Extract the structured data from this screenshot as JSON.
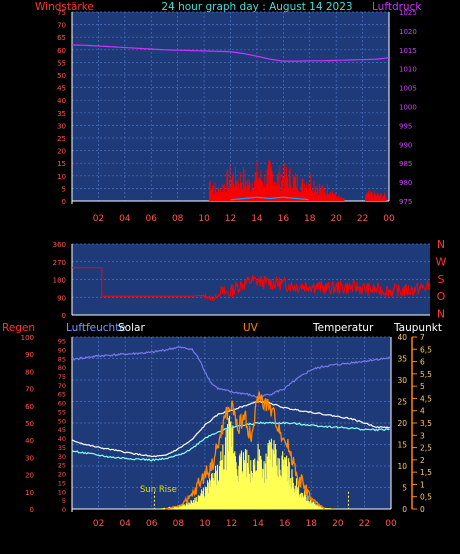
{
  "chart_data": [
    {
      "type": "line",
      "title": "24 hour graph day : August 14 2023",
      "left_axis_label": "Windstärke",
      "right_axis_label": "Luftdruck",
      "x_ticks": [
        "02",
        "04",
        "06",
        "08",
        "10",
        "12",
        "14",
        "16",
        "18",
        "20",
        "22",
        "00"
      ],
      "left_ticks": [
        75,
        70,
        65,
        60,
        55,
        50,
        45,
        40,
        35,
        30,
        25,
        20,
        15,
        10,
        5,
        0
      ],
      "left_ylim": [
        0,
        75
      ],
      "right_ticks": [
        1025,
        1020,
        1015,
        1010,
        1005,
        1000,
        995,
        990,
        985,
        980,
        975
      ],
      "right_ylim": [
        975,
        1025
      ],
      "series": [
        {
          "name": "",
          "role": "pressure",
          "color": "#cc33ff",
          "x": [
            0,
            1,
            2,
            3,
            4,
            5,
            6,
            7,
            8,
            9,
            10,
            11,
            12,
            13,
            14,
            15,
            16,
            17,
            18,
            19,
            20,
            21,
            22,
            23,
            24
          ],
          "values": [
            1016.3,
            1016.2,
            1016.0,
            1015.8,
            1015.6,
            1015.4,
            1015.2,
            1015.0,
            1014.9,
            1014.8,
            1014.7,
            1014.6,
            1014.5,
            1014.0,
            1013.3,
            1012.5,
            1012.0,
            1012.0,
            1012.1,
            1012.1,
            1012.2,
            1012.3,
            1012.4,
            1012.5,
            1012.9
          ]
        },
        {
          "name": "",
          "role": "gust",
          "color": "#ff0000",
          "x": [
            10.5,
            11,
            11.5,
            12,
            12.5,
            13,
            13.5,
            14,
            14.5,
            15,
            15.5,
            16,
            16.5,
            17,
            17.5,
            18,
            18.5,
            19,
            19.5,
            20,
            20.5,
            22.5,
            23.5
          ],
          "values": [
            11,
            5,
            9,
            14,
            12,
            13,
            9,
            15,
            11,
            16,
            12,
            14,
            13,
            11,
            9,
            12,
            9,
            6,
            7,
            3,
            1,
            4,
            3
          ]
        },
        {
          "name": "",
          "role": "wind-average",
          "color": "#ff0000",
          "x": [
            10.5,
            11,
            11.5,
            12,
            12.5,
            13,
            13.5,
            14,
            14.5,
            15,
            15.5,
            16,
            16.5,
            17,
            17.5,
            18,
            18.5,
            19,
            19.5,
            20
          ],
          "values": [
            3,
            1,
            2,
            4,
            3,
            4,
            2,
            5,
            3,
            5,
            4,
            4,
            3,
            3,
            2,
            3,
            2,
            1,
            2,
            1
          ]
        },
        {
          "name": "",
          "role": "wind-speed",
          "color": "#00aaff",
          "x": [
            12,
            13,
            14,
            15,
            16,
            17,
            18
          ],
          "values": [
            0.5,
            1,
            1.5,
            1,
            1.5,
            1,
            0.5
          ]
        }
      ]
    },
    {
      "type": "line",
      "title": "",
      "right_axis_label": [
        "N",
        "W",
        "S",
        "O",
        "N"
      ],
      "x_ticks": [],
      "left_ticks": [
        360,
        270,
        180,
        90,
        0
      ],
      "ylim": [
        0,
        360
      ],
      "series": [
        {
          "name": "",
          "role": "wind-direction",
          "color": "#ff0000",
          "x": [
            0,
            2,
            2.01,
            8,
            9,
            9.5,
            10,
            10.5,
            11,
            12,
            13,
            14,
            15,
            16,
            17,
            18,
            19,
            20,
            21,
            22,
            23,
            24
          ],
          "values": [
            240,
            240,
            95,
            95,
            95,
            80,
            115,
            110,
            140,
            175,
            165,
            160,
            145,
            150,
            135,
            140,
            140,
            130,
            125,
            120,
            130,
            145
          ]
        }
      ]
    },
    {
      "type": "line",
      "title": "",
      "header_labels": {
        "rain": "Regen",
        "humidity": "Luftfeuchte",
        "solar": "Solar",
        "uv": "UV",
        "temperature": "Temperatur",
        "dewpoint": "Taupunkt"
      },
      "annotation": "Sun Rise",
      "sunrise_hour": 6.2,
      "x_ticks": [
        "02",
        "04",
        "06",
        "08",
        "10",
        "12",
        "14",
        "16",
        "18",
        "20",
        "22",
        "00"
      ],
      "rain_ticks": [
        100,
        90,
        80,
        70,
        60,
        50,
        40,
        30,
        20,
        10,
        0
      ],
      "humidity_ticks": [
        95,
        90,
        85,
        80,
        75,
        70,
        65,
        60,
        55,
        50,
        45,
        40,
        35,
        30,
        25,
        20,
        15,
        10,
        5,
        0
      ],
      "temperature_ticks": [
        40,
        35,
        30,
        25,
        20,
        15,
        10,
        5,
        0
      ],
      "uv_ticks": [
        "7",
        "6,5",
        "6",
        "5,5",
        "5",
        "4,5",
        "4",
        "3,5",
        "3",
        "2,5",
        "2",
        "1,5",
        "1",
        "0,5",
        "0"
      ],
      "temperature_ylim": [
        0,
        40
      ],
      "uv_ylim": [
        0,
        7
      ],
      "series": [
        {
          "name": "Luftfeuchte",
          "role": "humidity",
          "color": "#7777ee",
          "x": [
            0,
            2,
            4,
            6,
            8,
            9,
            9.5,
            10,
            10.5,
            11,
            12,
            13,
            14,
            15,
            16,
            17,
            18,
            19,
            20,
            21,
            22,
            23,
            24
          ],
          "values": [
            87,
            89,
            90,
            91,
            94,
            93,
            88,
            80,
            73,
            70,
            68,
            67,
            65,
            67,
            70,
            76,
            81,
            83,
            84,
            85,
            86,
            87,
            88
          ]
        },
        {
          "name": "Temperatur",
          "role": "temperature",
          "color": "#ffffff",
          "x": [
            0,
            1,
            2,
            3,
            4,
            5,
            6,
            7,
            8,
            9,
            10,
            11,
            12,
            13,
            14,
            15,
            16,
            17,
            18,
            19,
            20,
            21,
            22,
            23,
            24
          ],
          "values": [
            16,
            15,
            14.3,
            13.8,
            13.2,
            12.7,
            12.2,
            12.4,
            14,
            16,
            19.5,
            22,
            23,
            24,
            25,
            24.5,
            23.5,
            23,
            22.5,
            22,
            21.5,
            21,
            20,
            19,
            19
          ]
        },
        {
          "name": "Taupunkt",
          "role": "dewpoint",
          "color": "#88ffff",
          "x": [
            0,
            1,
            2,
            3,
            4,
            5,
            6,
            7,
            8,
            9,
            10,
            11,
            12,
            13,
            14,
            15,
            16,
            17,
            18,
            19,
            20,
            21,
            22,
            23,
            24
          ],
          "values": [
            13.5,
            13,
            12.5,
            12,
            11.8,
            11.6,
            11.4,
            11.6,
            12.5,
            14,
            16.5,
            18,
            19,
            19.5,
            20,
            20,
            20,
            19.8,
            19.5,
            19.2,
            19,
            18.8,
            18.5,
            18.4,
            18.6
          ]
        },
        {
          "name": "UV",
          "role": "uv",
          "color": "#ff8800",
          "x": [
            7,
            8,
            9,
            10,
            10.5,
            11,
            11.5,
            12,
            12.5,
            13,
            13.5,
            14,
            14.5,
            15,
            15.5,
            16,
            16.5,
            17,
            17.5,
            18,
            18.5,
            19
          ],
          "values": [
            0,
            0.1,
            0.5,
            1.4,
            1.7,
            2.6,
            3.7,
            4.2,
            3.3,
            3.8,
            2.8,
            4.6,
            4.3,
            4.0,
            3.4,
            2.8,
            2.2,
            1.3,
            0.9,
            0.4,
            0.2,
            0
          ]
        },
        {
          "name": "Solar",
          "role": "solar",
          "color": "#ffff44",
          "x": [
            6.5,
            7,
            8,
            9,
            9.5,
            10,
            10.5,
            11,
            11.5,
            12,
            12.5,
            13,
            13.5,
            14,
            14.5,
            15,
            15.5,
            16,
            16.5,
            17,
            17.5,
            18,
            18.5,
            19,
            20
          ],
          "values": [
            0,
            0.3,
            0.8,
            2,
            3.5,
            5,
            8,
            10,
            16,
            22,
            12,
            14,
            10,
            16,
            12,
            18,
            11,
            14,
            9,
            6,
            4,
            2,
            1,
            0.3,
            0
          ]
        }
      ]
    }
  ]
}
